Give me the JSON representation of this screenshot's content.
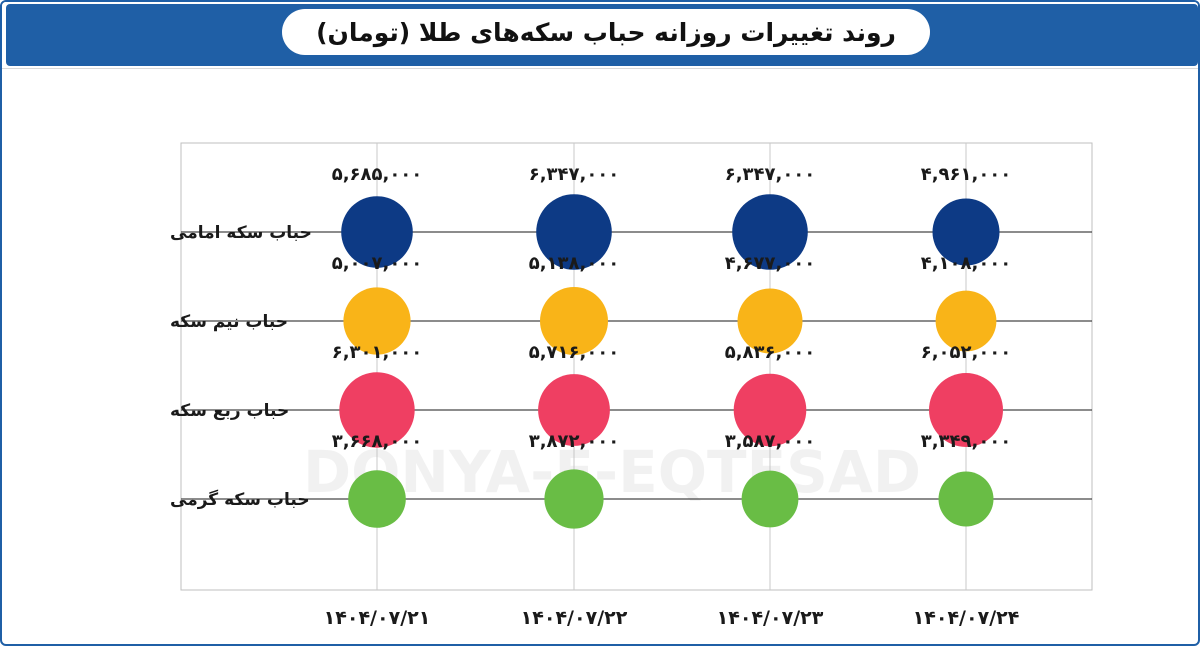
{
  "title": "روند تغییرات روزانه حباب سکه‌های طلا (تومان)",
  "watermark": "DONYA-E-EQTESAD",
  "colors": {
    "header": "#1f5fa6",
    "categories": [
      "#0d3a85",
      "#f9b418",
      "#ef3f62",
      "#69bd45"
    ]
  },
  "chart_data": {
    "type": "scatter",
    "title": "روند تغییرات روزانه حباب سکه‌های طلا (تومان)",
    "x_labels": [
      "۱۴۰۴/۰۷/۲۱",
      "۱۴۰۴/۰۷/۲۲",
      "۱۴۰۴/۰۷/۲۳",
      "۱۴۰۴/۰۷/۲۴"
    ],
    "categories": [
      "حباب سکه امامی",
      "حباب نیم سکه",
      "حباب ربع سکه",
      "حباب سکه گرمی"
    ],
    "values": [
      [
        5685000,
        6347000,
        6347000,
        4961000
      ],
      [
        5007000,
        5138000,
        4677000,
        4108000
      ],
      [
        6301000,
        5716000,
        5836000,
        6052000
      ],
      [
        3668000,
        3872000,
        3587000,
        3349000
      ]
    ],
    "value_labels": [
      [
        "۵,۶۸۵,۰۰۰",
        "۶,۳۴۷,۰۰۰",
        "۶,۳۴۷,۰۰۰",
        "۴,۹۶۱,۰۰۰"
      ],
      [
        "۵,۰۰۷,۰۰۰",
        "۵,۱۳۸,۰۰۰",
        "۴,۶۷۷,۰۰۰",
        "۴,۱۰۸,۰۰۰"
      ],
      [
        "۶,۳۰۱,۰۰۰",
        "۵,۷۱۶,۰۰۰",
        "۵,۸۳۶,۰۰۰",
        "۶,۰۵۲,۰۰۰"
      ],
      [
        "۳,۶۶۸,۰۰۰",
        "۳,۸۷۲,۰۰۰",
        "۳,۵۸۷,۰۰۰",
        "۳,۳۴۹,۰۰۰"
      ]
    ],
    "encoding": "bubble size proportional to value",
    "grid": true
  }
}
